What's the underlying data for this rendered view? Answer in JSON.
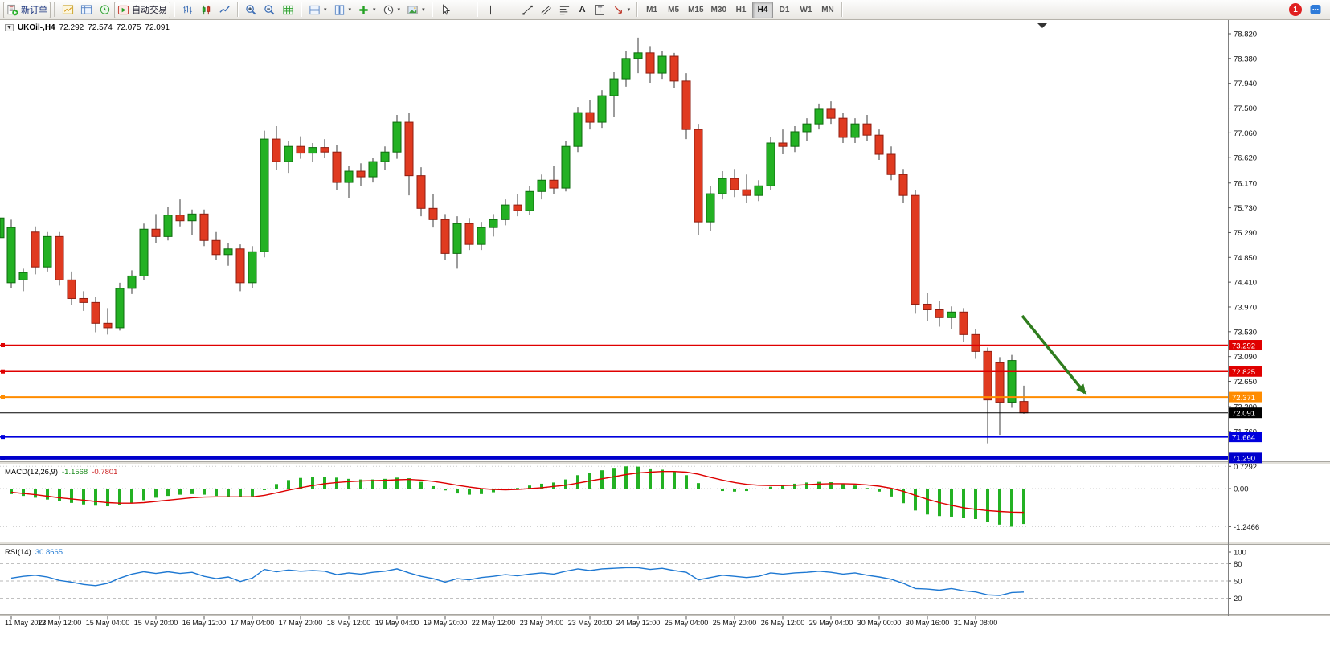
{
  "toolbar": {
    "new_order_label": "新订单",
    "auto_trading_label": "自动交易",
    "text_tool_label": "A",
    "text_label_tool_label": "T",
    "timeframes": [
      "M1",
      "M5",
      "M15",
      "M30",
      "H1",
      "H4",
      "D1",
      "W1",
      "MN"
    ],
    "active_timeframe": "H4",
    "notification_count": "1",
    "icons": {
      "new-order-icon": "document-with-green-plus",
      "chart-window-icon": "mini-chart",
      "market-watch-icon": "quotes-table",
      "navigator-icon": "compass-circle",
      "auto-trading-icon": "play-triangle-in-frame",
      "bar-chart-icon": "ohlc-bars",
      "candlestick-chart-icon": "candles",
      "line-chart-icon": "zigzag-line",
      "zoom-in-icon": "magnifier-plus",
      "zoom-out-icon": "magnifier-minus",
      "grid-icon": "green-grid",
      "tile-horizontal-icon": "stacked-windows",
      "tile-vertical-icon": "side-by-side-windows",
      "new-chart-icon": "green-plus",
      "period-icon": "clock",
      "template-icon": "picture",
      "cursor-icon": "pointer-arrow",
      "crosshair-icon": "crosshair",
      "vertical-line-icon": "vertical-line",
      "horizontal-line-icon": "horizontal-line",
      "trendline-icon": "diagonal-line",
      "channel-icon": "parallel-diagonals",
      "fibonacci-icon": "fibo-levels",
      "arrows-icon": "draw-arrow",
      "messages-icon": "chat-square",
      "chart-dropdown-icon": "triangle-down",
      "chart-shift-marker": "triangle-down"
    }
  },
  "chart": {
    "title_symbol": "UKOil-,H4",
    "ohlc": {
      "open": "72.292",
      "high": "72.574",
      "low": "72.075",
      "close": "72.091"
    }
  },
  "chart_data": {
    "type": "candlestick",
    "symbol": "UKOil-",
    "timeframe": "H4",
    "bars_per_label": 4,
    "price_axis_labels": [
      "78.820",
      "78.380",
      "77.940",
      "77.500",
      "77.060",
      "76.620",
      "76.170",
      "75.730",
      "75.290",
      "74.850",
      "74.410",
      "73.970",
      "73.530",
      "73.090",
      "72.650",
      "72.200",
      "71.760"
    ],
    "time_labels": [
      "11 May 2023",
      "12 May 12:00",
      "15 May 04:00",
      "15 May 20:00",
      "16 May 12:00",
      "17 May 04:00",
      "17 May 20:00",
      "18 May 12:00",
      "19 May 04:00",
      "19 May 20:00",
      "22 May 12:00",
      "23 May 04:00",
      "23 May 20:00",
      "24 May 12:00",
      "25 May 04:00",
      "25 May 20:00",
      "26 May 12:00",
      "29 May 04:00",
      "30 May 00:00",
      "30 May 16:00",
      "31 May 08:00"
    ],
    "colors": {
      "up": "#23b123",
      "up_border": "#0e6b0e",
      "down": "#e03a20",
      "down_border": "#8f1d10",
      "wick": "#3a3a3a",
      "signal": "#dd0000",
      "rsi": "#1e78d2",
      "arrow": "#2f7d1e"
    },
    "hlines": [
      {
        "price": 73.292,
        "label": "73.292",
        "color": "#e00000",
        "width": 1.5
      },
      {
        "price": 72.825,
        "label": "72.825",
        "color": "#e00000",
        "width": 1.5
      },
      {
        "price": 72.371,
        "label": "72.371",
        "color": "#ff8c00",
        "width": 2
      },
      {
        "price": 72.091,
        "label": "72.091",
        "color": "#000000",
        "width": 1,
        "is_price_line": true
      },
      {
        "price": 71.664,
        "label": "71.664",
        "color": "#0000dd",
        "width": 2
      },
      {
        "price": 71.29,
        "label": "71.290",
        "color": "#0000cc",
        "width": 4
      }
    ],
    "candles": [
      [
        74.4,
        75.52,
        74.3,
        75.38
      ],
      [
        74.45,
        74.65,
        74.25,
        74.58
      ],
      [
        75.3,
        75.4,
        74.55,
        74.68
      ],
      [
        74.68,
        75.3,
        74.6,
        75.22
      ],
      [
        75.22,
        75.3,
        74.35,
        74.45
      ],
      [
        74.45,
        74.6,
        74.0,
        74.12
      ],
      [
        74.12,
        74.25,
        73.9,
        74.05
      ],
      [
        74.05,
        74.15,
        73.52,
        73.68
      ],
      [
        73.68,
        73.95,
        73.48,
        73.6
      ],
      [
        73.6,
        74.4,
        73.55,
        74.3
      ],
      [
        74.3,
        74.62,
        74.2,
        74.52
      ],
      [
        74.52,
        75.45,
        74.45,
        75.35
      ],
      [
        75.35,
        75.62,
        75.1,
        75.22
      ],
      [
        75.22,
        75.75,
        75.15,
        75.6
      ],
      [
        75.6,
        75.88,
        75.4,
        75.5
      ],
      [
        75.5,
        75.7,
        75.25,
        75.62
      ],
      [
        75.62,
        75.7,
        75.05,
        75.15
      ],
      [
        75.15,
        75.3,
        74.8,
        74.9
      ],
      [
        74.9,
        75.1,
        74.7,
        75.0
      ],
      [
        75.0,
        75.08,
        74.25,
        74.4
      ],
      [
        74.4,
        75.05,
        74.3,
        74.95
      ],
      [
        74.95,
        77.1,
        74.85,
        76.95
      ],
      [
        76.95,
        77.18,
        76.4,
        76.55
      ],
      [
        76.55,
        76.92,
        76.35,
        76.82
      ],
      [
        76.82,
        77.0,
        76.6,
        76.7
      ],
      [
        76.7,
        76.88,
        76.55,
        76.8
      ],
      [
        76.8,
        76.95,
        76.62,
        76.72
      ],
      [
        76.72,
        76.85,
        76.05,
        76.18
      ],
      [
        76.18,
        76.48,
        75.9,
        76.38
      ],
      [
        76.38,
        76.52,
        76.12,
        76.28
      ],
      [
        76.28,
        76.62,
        76.18,
        76.55
      ],
      [
        76.55,
        76.82,
        76.4,
        76.72
      ],
      [
        76.72,
        77.38,
        76.6,
        77.25
      ],
      [
        77.25,
        77.42,
        75.95,
        76.3
      ],
      [
        76.3,
        76.45,
        75.58,
        75.72
      ],
      [
        75.72,
        75.98,
        75.38,
        75.52
      ],
      [
        75.52,
        75.62,
        74.8,
        74.92
      ],
      [
        74.92,
        75.58,
        74.65,
        75.45
      ],
      [
        75.45,
        75.55,
        74.98,
        75.08
      ],
      [
        75.08,
        75.48,
        74.98,
        75.38
      ],
      [
        75.38,
        75.62,
        75.22,
        75.52
      ],
      [
        75.52,
        75.88,
        75.42,
        75.78
      ],
      [
        75.78,
        75.98,
        75.58,
        75.68
      ],
      [
        75.68,
        76.12,
        75.6,
        76.02
      ],
      [
        76.02,
        76.32,
        75.88,
        76.22
      ],
      [
        76.22,
        76.48,
        75.98,
        76.08
      ],
      [
        76.08,
        76.92,
        76.02,
        76.82
      ],
      [
        76.82,
        77.52,
        76.72,
        77.42
      ],
      [
        77.42,
        77.65,
        77.12,
        77.25
      ],
      [
        77.25,
        77.82,
        77.15,
        77.72
      ],
      [
        77.72,
        78.15,
        77.35,
        78.02
      ],
      [
        78.02,
        78.52,
        77.88,
        78.38
      ],
      [
        78.38,
        78.75,
        78.12,
        78.48
      ],
      [
        78.48,
        78.6,
        77.95,
        78.12
      ],
      [
        78.12,
        78.52,
        78.02,
        78.42
      ],
      [
        78.42,
        78.48,
        77.85,
        77.98
      ],
      [
        77.98,
        78.12,
        76.95,
        77.12
      ],
      [
        77.12,
        77.22,
        75.25,
        75.48
      ],
      [
        75.48,
        76.12,
        75.32,
        75.98
      ],
      [
        75.98,
        76.38,
        75.88,
        76.25
      ],
      [
        76.25,
        76.42,
        75.92,
        76.05
      ],
      [
        76.05,
        76.32,
        75.82,
        75.95
      ],
      [
        75.95,
        76.22,
        75.85,
        76.12
      ],
      [
        76.12,
        76.98,
        76.05,
        76.88
      ],
      [
        76.88,
        77.12,
        76.68,
        76.82
      ],
      [
        76.82,
        77.18,
        76.72,
        77.08
      ],
      [
        77.08,
        77.32,
        76.92,
        77.22
      ],
      [
        77.22,
        77.58,
        77.12,
        77.48
      ],
      [
        77.48,
        77.62,
        77.22,
        77.32
      ],
      [
        77.32,
        77.42,
        76.88,
        76.98
      ],
      [
        76.98,
        77.32,
        76.88,
        77.22
      ],
      [
        77.22,
        77.38,
        76.92,
        77.02
      ],
      [
        77.02,
        77.12,
        76.58,
        76.68
      ],
      [
        76.68,
        76.82,
        76.22,
        76.32
      ],
      [
        76.32,
        76.42,
        75.82,
        75.95
      ],
      [
        75.95,
        76.05,
        73.85,
        74.02
      ],
      [
        74.02,
        74.22,
        73.72,
        73.92
      ],
      [
        73.92,
        74.08,
        73.62,
        73.78
      ],
      [
        73.78,
        73.98,
        73.58,
        73.88
      ],
      [
        73.88,
        73.95,
        73.35,
        73.48
      ],
      [
        73.48,
        73.58,
        73.05,
        73.18
      ],
      [
        73.18,
        73.25,
        71.55,
        72.32
      ],
      [
        72.98,
        73.08,
        71.7,
        72.28
      ],
      [
        72.28,
        73.12,
        72.18,
        73.02
      ],
      [
        72.292,
        72.574,
        72.075,
        72.091
      ]
    ],
    "macd": {
      "name": "MACD(12,26,9)",
      "value_main": "-1.1568",
      "value_signal": "-0.7801",
      "axis_labels": [
        "0.7292",
        "0.00",
        "-1.2466"
      ],
      "axis_values": [
        0.7292,
        0,
        -1.2466
      ],
      "histogram": [
        -0.18,
        -0.24,
        -0.3,
        -0.36,
        -0.42,
        -0.47,
        -0.52,
        -0.56,
        -0.58,
        -0.55,
        -0.48,
        -0.38,
        -0.3,
        -0.24,
        -0.2,
        -0.18,
        -0.2,
        -0.24,
        -0.27,
        -0.28,
        -0.25,
        -0.05,
        0.15,
        0.28,
        0.35,
        0.38,
        0.39,
        0.36,
        0.32,
        0.3,
        0.3,
        0.32,
        0.36,
        0.34,
        0.22,
        0.08,
        -0.06,
        -0.16,
        -0.2,
        -0.18,
        -0.12,
        -0.05,
        0.02,
        0.1,
        0.16,
        0.2,
        0.3,
        0.44,
        0.52,
        0.6,
        0.68,
        0.73,
        0.72,
        0.66,
        0.62,
        0.55,
        0.44,
        0.18,
        -0.02,
        -0.08,
        -0.1,
        -0.08,
        -0.02,
        0.06,
        0.12,
        0.16,
        0.2,
        0.22,
        0.21,
        0.16,
        0.1,
        0.02,
        -0.1,
        -0.26,
        -0.48,
        -0.72,
        -0.85,
        -0.9,
        -0.92,
        -0.95,
        -1.0,
        -1.08,
        -1.18,
        -1.25,
        -1.16
      ],
      "signal": [
        -0.12,
        -0.16,
        -0.2,
        -0.25,
        -0.3,
        -0.34,
        -0.38,
        -0.42,
        -0.46,
        -0.48,
        -0.48,
        -0.46,
        -0.42,
        -0.38,
        -0.34,
        -0.3,
        -0.28,
        -0.27,
        -0.27,
        -0.27,
        -0.27,
        -0.22,
        -0.14,
        -0.05,
        0.03,
        0.1,
        0.16,
        0.2,
        0.23,
        0.25,
        0.26,
        0.27,
        0.29,
        0.3,
        0.28,
        0.24,
        0.18,
        0.11,
        0.05,
        0.0,
        -0.03,
        -0.04,
        -0.03,
        0.0,
        0.03,
        0.07,
        0.11,
        0.18,
        0.25,
        0.32,
        0.39,
        0.46,
        0.51,
        0.54,
        0.56,
        0.56,
        0.54,
        0.47,
        0.37,
        0.28,
        0.2,
        0.14,
        0.11,
        0.1,
        0.1,
        0.11,
        0.13,
        0.15,
        0.16,
        0.16,
        0.15,
        0.12,
        0.08,
        0.01,
        -0.09,
        -0.22,
        -0.35,
        -0.46,
        -0.55,
        -0.63,
        -0.68,
        -0.72,
        -0.75,
        -0.77,
        -0.78
      ]
    },
    "rsi": {
      "name": "RSI(14)",
      "value": "30.8665",
      "axis_labels": [
        "100",
        "80",
        "50",
        "20"
      ],
      "axis_values": [
        100,
        80,
        50,
        20
      ],
      "levels": [
        80,
        50,
        20
      ],
      "values": [
        55,
        58,
        60,
        57,
        51,
        48,
        44,
        42,
        46,
        55,
        62,
        66,
        63,
        66,
        63,
        65,
        58,
        54,
        57,
        49,
        55,
        70,
        66,
        69,
        67,
        68,
        67,
        61,
        64,
        62,
        65,
        67,
        71,
        64,
        58,
        54,
        48,
        54,
        52,
        56,
        58,
        61,
        59,
        62,
        64,
        62,
        67,
        71,
        68,
        71,
        72,
        73,
        73,
        70,
        72,
        68,
        65,
        52,
        56,
        60,
        58,
        56,
        58,
        64,
        62,
        64,
        65,
        67,
        65,
        62,
        64,
        60,
        57,
        53,
        46,
        37,
        36,
        34,
        37,
        33,
        31,
        26,
        25,
        30,
        30.87
      ]
    },
    "arrow": {
      "direction": "down-right",
      "color": "#2f7d1e"
    }
  }
}
